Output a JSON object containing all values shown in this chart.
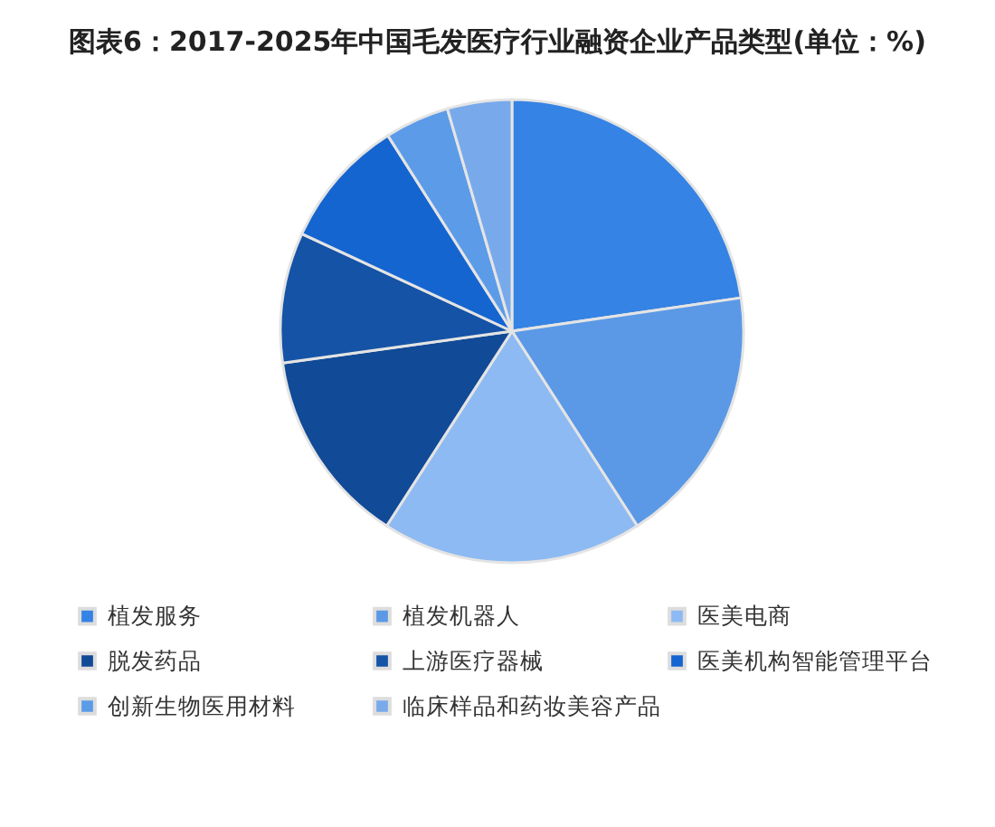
{
  "chart_data": {
    "type": "pie",
    "title": "图表6：2017-2025年中国毛发医疗行业融资企业产品类型(单位：%)",
    "categories": [
      "植发服务",
      "植发机器人",
      "医美电商",
      "脱发药品",
      "上游医疗器械",
      "医美机构智能管理平台",
      "创新生物医用材料",
      "临床样品和药妆美容产品"
    ],
    "values": [
      22.7,
      18.2,
      18.2,
      13.7,
      9.1,
      9.1,
      4.5,
      4.5
    ],
    "colors": [
      "#3583e4",
      "#5b99e6",
      "#8dbaf2",
      "#114a96",
      "#1553a6",
      "#1565d0",
      "#5b9be8",
      "#78aaeb"
    ],
    "legend": "bottom"
  }
}
